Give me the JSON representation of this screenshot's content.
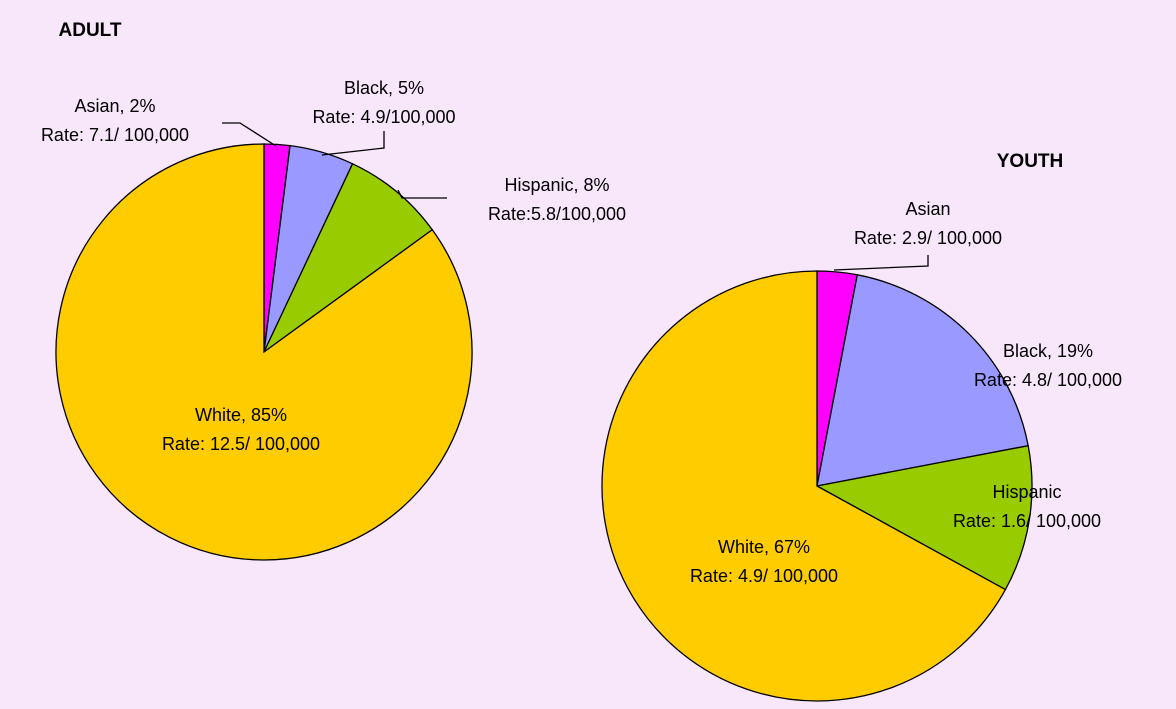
{
  "chart_data": [
    {
      "type": "pie",
      "title": "ADULT",
      "categories": [
        "Asian, 2%",
        "Black, 5%",
        "Hispanic, 8%",
        "White, 85%"
      ],
      "rates": [
        "Rate: 7.1/ 100,000",
        "Rate: 4.9/100,000",
        "Rate:5.8/100,000",
        "Rate: 12.5/ 100,000"
      ],
      "values": [
        2,
        5,
        8,
        85
      ],
      "colors": [
        "#ff00ff",
        "#9999ff",
        "#99cc00",
        "#ffcc00"
      ]
    },
    {
      "type": "pie",
      "title": "YOUTH",
      "categories": [
        "Asian",
        "Black, 19%",
        "Hispanic",
        "White, 67%"
      ],
      "rates": [
        "Rate: 2.9/ 100,000",
        "Rate: 4.8/ 100,000",
        "Rate: 1.6/ 100,000",
        "Rate: 4.9/ 100,000"
      ],
      "values": [
        3,
        19,
        11,
        67
      ],
      "colors": [
        "#ff00ff",
        "#9999ff",
        "#99cc00",
        "#ffcc00"
      ]
    }
  ]
}
